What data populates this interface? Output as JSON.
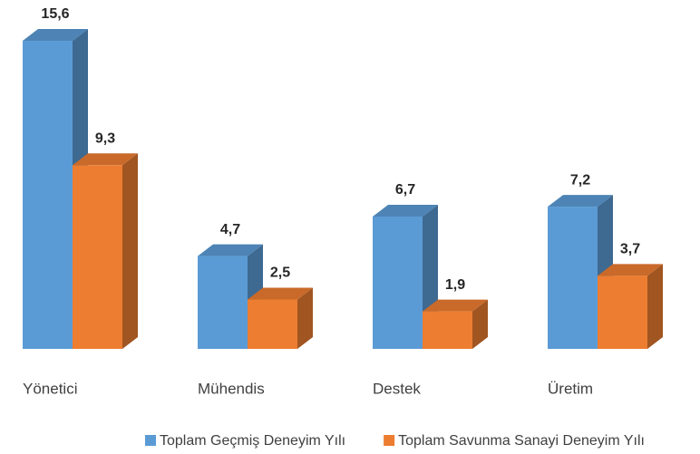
{
  "chart_data": {
    "type": "bar3d",
    "categories": [
      "Yönetici",
      "Mühendis",
      "Destek",
      "Üretim"
    ],
    "series": [
      {
        "name": "Toplam Geçmiş Deneyim Yılı",
        "color": "#5b9bd5",
        "values": [
          15.6,
          4.7,
          6.7,
          7.2
        ],
        "value_labels": [
          "15,6",
          "4,7",
          "6,7",
          "7,2"
        ]
      },
      {
        "name": "Toplam Savunma Sanayi Deneyim Yılı",
        "color": "#ed7d31",
        "values": [
          9.3,
          2.5,
          1.9,
          3.7
        ],
        "value_labels": [
          "9,3",
          "2,5",
          "1,9",
          "3,7"
        ]
      }
    ],
    "legend": "bottom"
  }
}
